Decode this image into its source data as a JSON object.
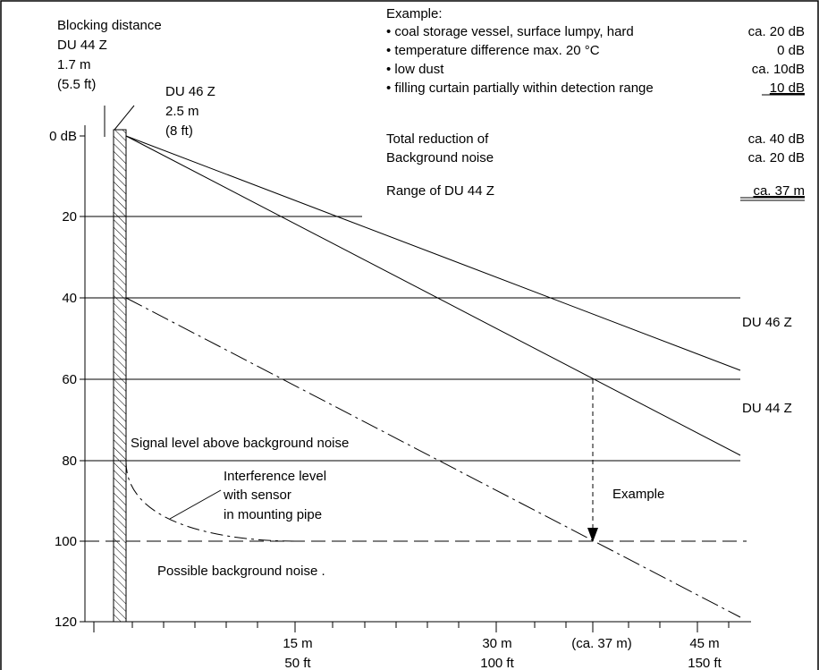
{
  "chart_data": {
    "type": "line",
    "ytick_labels": [
      "0 dB",
      "20",
      "40",
      "60",
      "80",
      "100",
      "120"
    ],
    "x_ticks": [
      {
        "m": "15 m",
        "ft": "50 ft"
      },
      {
        "m": "30 m",
        "ft": "100 ft"
      },
      {
        "est": "(ca. 37 m)"
      },
      {
        "m": "45 m",
        "ft": "150 ft"
      }
    ],
    "blocking": {
      "title": "Blocking distance",
      "du44_name": "DU 44 Z",
      "du44_m": "1.7 m",
      "du44_ft": "(5.5 ft)",
      "du46_name": "DU 46 Z",
      "du46_m": "2.5 m",
      "du46_ft": "(8 ft)"
    },
    "series_labels": {
      "du46": "DU 46 Z",
      "du44": "DU 44 Z"
    },
    "series": [
      {
        "name": "DU 46 Z",
        "x_m": [
          2.5,
          48
        ],
        "y_db": [
          0,
          58
        ]
      },
      {
        "name": "DU 44 Z",
        "x_m": [
          1.7,
          48
        ],
        "y_db": [
          0,
          78
        ]
      }
    ],
    "dashed_line_db": [
      40,
      120
    ],
    "annotations": {
      "signal": "Signal level above background noise",
      "interference_1": "Interference  level",
      "interference_2": "with  sensor",
      "interference_3": "in mounting pipe",
      "noise": "Possible background noise .",
      "example": "Example"
    },
    "example_box": {
      "title": "Example:",
      "items": [
        {
          "text": "• coal storage vessel, surface lumpy, hard",
          "value": "ca. 20 dB"
        },
        {
          "text": "• temperature difference max. 20 °C",
          "value": "0 dB"
        },
        {
          "text": "• low dust",
          "value": "ca. 10dB"
        },
        {
          "text": "• filling curtain partially within detection range",
          "value": "10 dB"
        }
      ],
      "total_label": "Total reduction of",
      "total_value": "ca. 40 dB",
      "bg_label": "Background noise",
      "bg_value": "ca. 20 dB",
      "range_label": "Range of DU 44 Z",
      "range_value": "ca. 37 m"
    }
  }
}
